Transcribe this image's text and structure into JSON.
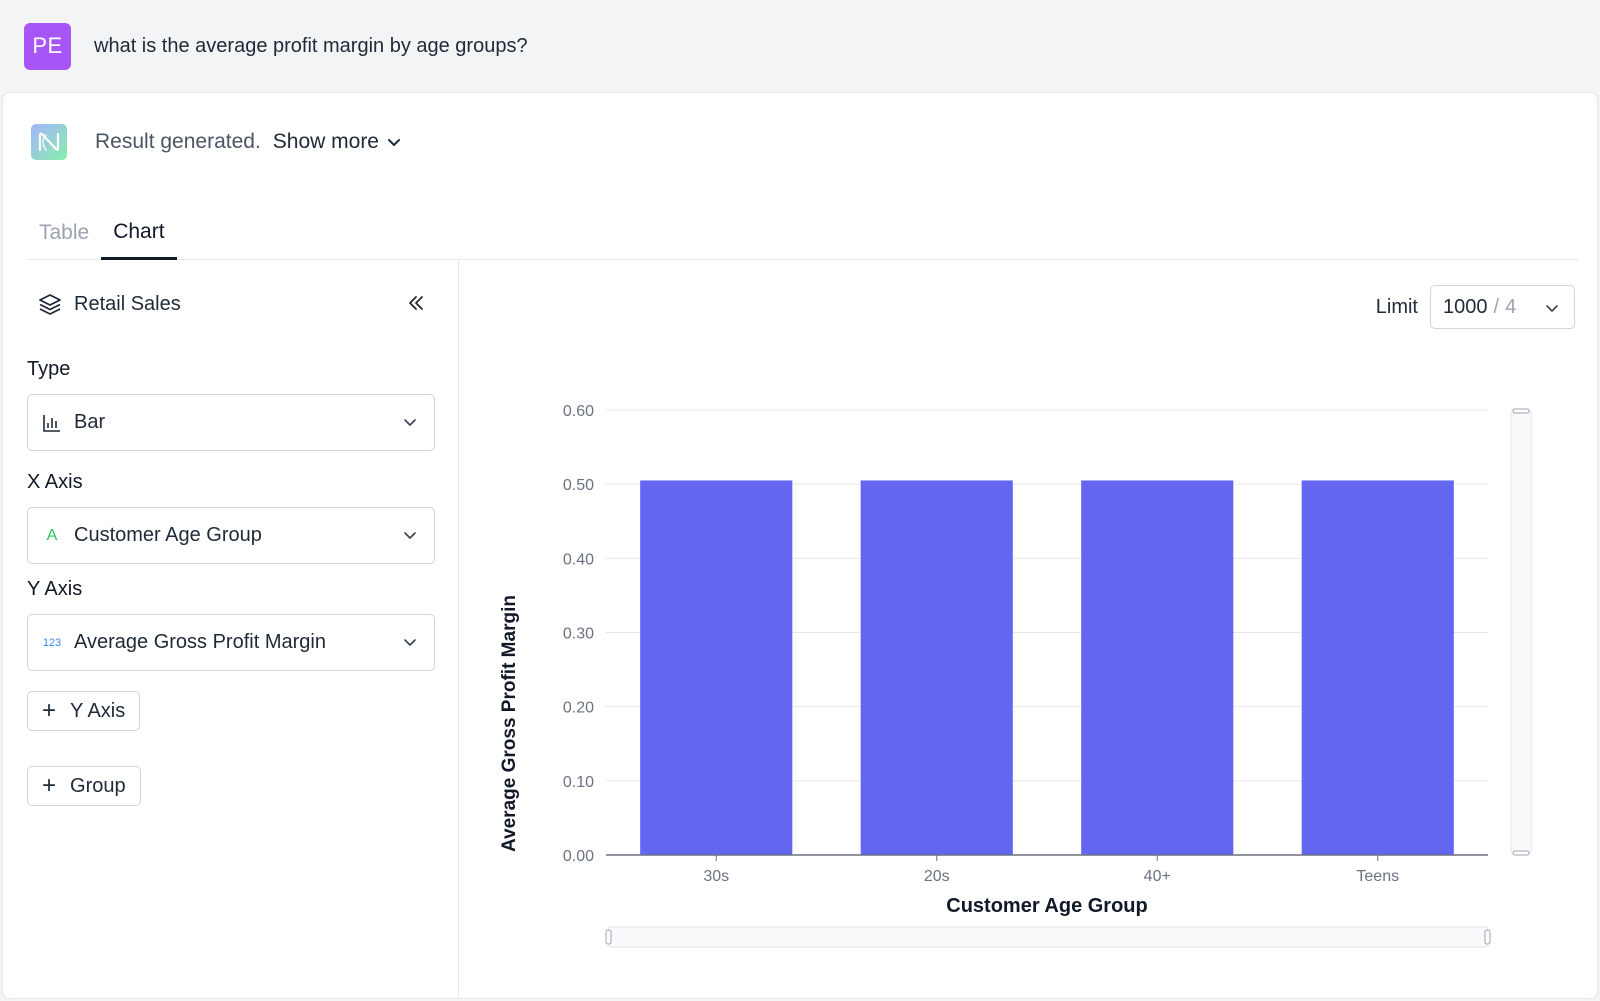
{
  "question": {
    "avatar_initials": "PE",
    "text": "what is the average profit margin by age groups?"
  },
  "result": {
    "status_text": "Result generated.",
    "show_more_label": "Show more"
  },
  "tabs": [
    {
      "label": "Table",
      "active": false
    },
    {
      "label": "Chart",
      "active": true
    }
  ],
  "left_panel": {
    "dataset_name": "Retail Sales",
    "type_label": "Type",
    "type_value": "Bar",
    "x_axis_label": "X Axis",
    "x_axis_type_icon": "A",
    "x_axis_value": "Customer Age Group",
    "y_axis_label": "Y Axis",
    "y_axis_type_icon": "123",
    "y_axis_value": "Average Gross Profit Margin",
    "add_y_axis_label": "Y Axis",
    "add_group_label": "Group"
  },
  "limit": {
    "label": "Limit",
    "value": "1000",
    "separator": "/",
    "total": "4"
  },
  "chart_data": {
    "type": "bar",
    "categories": [
      "30s",
      "20s",
      "40+",
      "Teens"
    ],
    "values": [
      0.505,
      0.505,
      0.505,
      0.505
    ],
    "xlabel": "Customer Age Group",
    "ylabel": "Average Gross Profit Margin",
    "ylim": [
      0,
      0.6
    ],
    "yticks": [
      "0.00",
      "0.10",
      "0.20",
      "0.30",
      "0.40",
      "0.50",
      "0.60"
    ],
    "bar_color": "#6366f1",
    "grid": true
  },
  "colors": {
    "avatar": "#a855f7",
    "accent_bar": "#6366f1"
  }
}
